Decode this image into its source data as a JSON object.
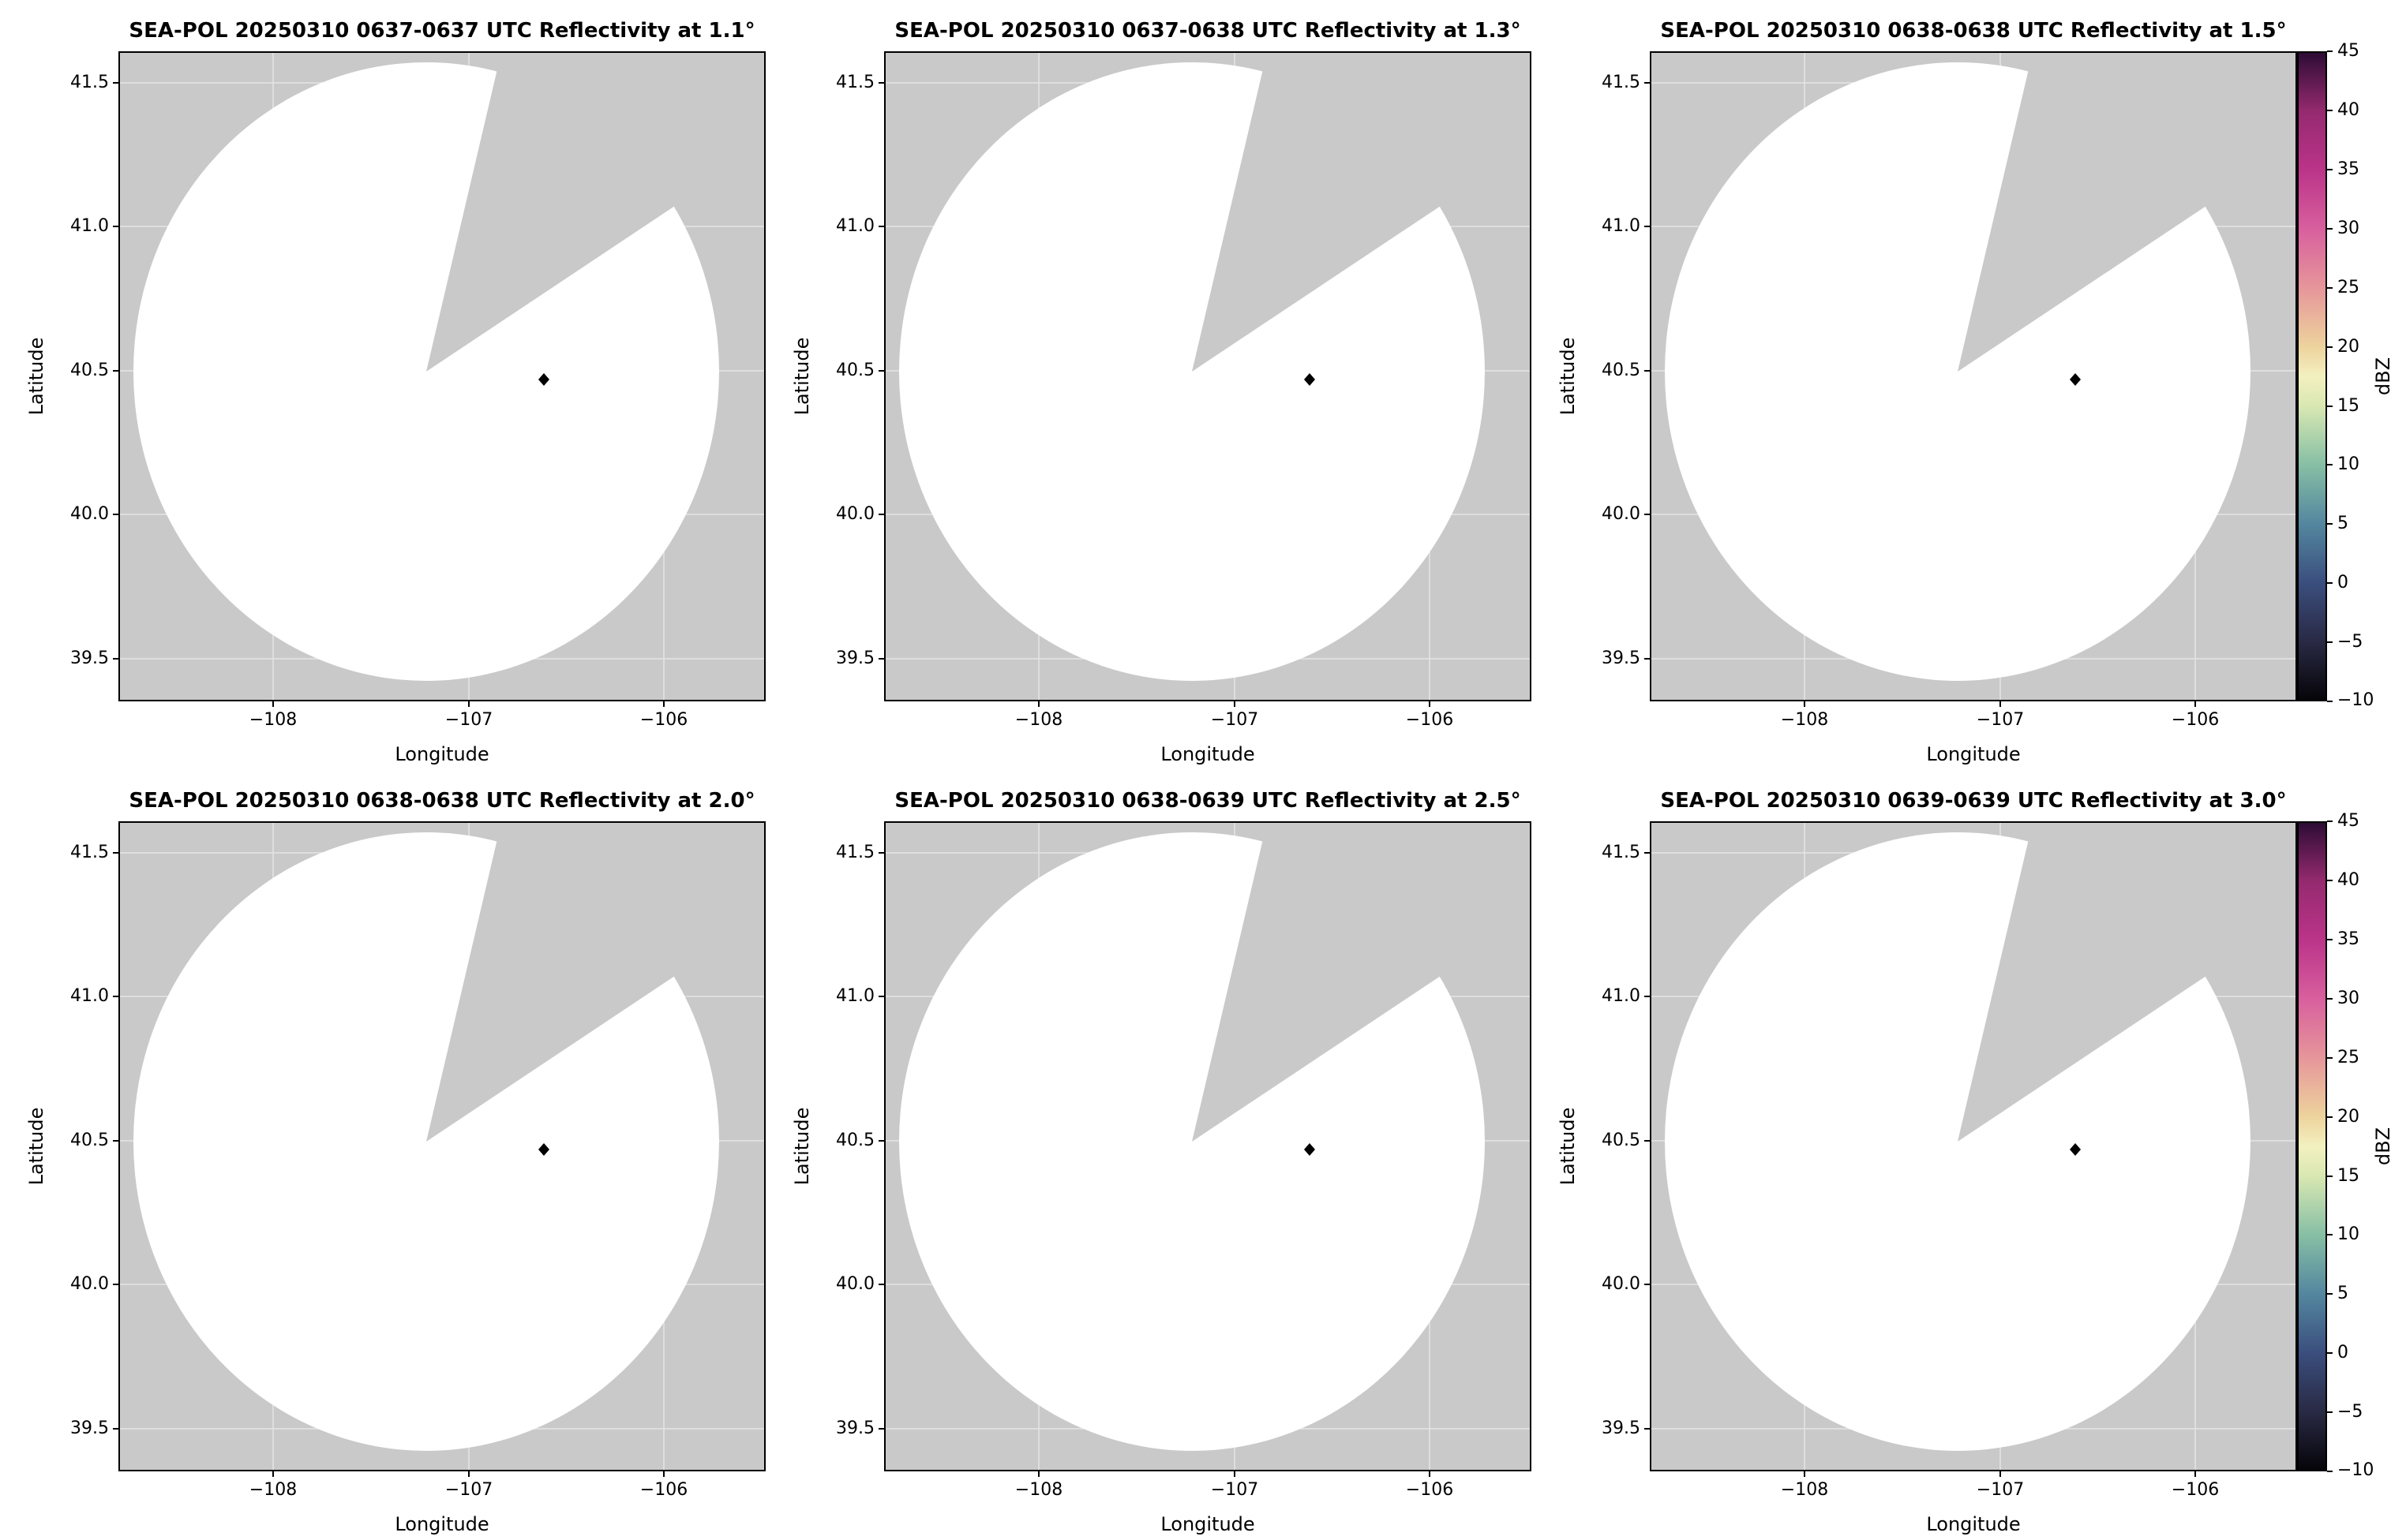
{
  "figure": {
    "type": "radar-reflectivity-multipanel",
    "rows": 2,
    "cols": 3,
    "background_color": "#ffffff",
    "masked_area_color": "#c9c9c9",
    "coverage_area_color": "#ffffff",
    "xtick_labels": [
      "−108",
      "−107",
      "−106"
    ],
    "ytick_labels": [
      "41.5",
      "41.0",
      "40.5",
      "40.0",
      "39.5"
    ],
    "colorbar": {
      "label": "dBZ",
      "tick_labels": [
        "45",
        "40",
        "35",
        "30",
        "25",
        "20",
        "15",
        "10",
        "5",
        "0",
        "−5",
        "−10"
      ],
      "vmin": -10,
      "vmax": 45,
      "colormap_name": "spectral radar colormap (dark blue → teal → pale yellow → pink → magenta → dark purple)",
      "gradient_stops_bottom_to_top": [
        "#060509",
        "#292a45",
        "#3b4f7e",
        "#54879f",
        "#87bfa5",
        "#d9e8b2",
        "#f3f0c0",
        "#edd39d",
        "#e6969a",
        "#d8609e",
        "#bb3489",
        "#952a6f",
        "#2d0c34"
      ],
      "gradient_stop_positions": [
        0,
        9.09,
        18.18,
        27.27,
        36.36,
        45.45,
        50,
        54.55,
        63.64,
        72.73,
        81.82,
        90.91,
        100
      ]
    }
  },
  "chart_data": [
    {
      "type": "heatmap",
      "title": "SEA-POL 20250310 0637-0637 UTC Reflectivity at 1.1°",
      "radar": "SEA-POL",
      "date": "20250310",
      "time_utc": "0637-0637",
      "elevation_deg": 1.1,
      "field": "Reflectivity",
      "units": "dBZ",
      "xlabel": "Longitude",
      "ylabel": "Latitude",
      "xlim": [
        -108.8,
        -105.5
      ],
      "ylim": [
        39.35,
        41.6
      ],
      "xticks": [
        -108,
        -107,
        -106
      ],
      "yticks": [
        39.5,
        40.0,
        40.5,
        41.0,
        41.5
      ],
      "color_range": [
        -10,
        45
      ],
      "coverage_circle": {
        "center_lon": -107.22,
        "center_lat": 40.48,
        "radius_deg_lat": 1.07
      },
      "missing_sector_deg_from_north": [
        9,
        54
      ],
      "site_marker": {
        "lon": -106.66,
        "lat": 40.45,
        "style": "small black diamond"
      },
      "echoes": "none visible; coverage area is blank (below -10 dBZ / no data)"
    },
    {
      "type": "heatmap",
      "title": "SEA-POL 20250310 0637-0638 UTC Reflectivity at 1.3°",
      "radar": "SEA-POL",
      "date": "20250310",
      "time_utc": "0637-0638",
      "elevation_deg": 1.3,
      "field": "Reflectivity",
      "units": "dBZ",
      "xlabel": "Longitude",
      "ylabel": "Latitude",
      "xlim": [
        -108.8,
        -105.5
      ],
      "ylim": [
        39.35,
        41.6
      ],
      "xticks": [
        -108,
        -107,
        -106
      ],
      "yticks": [
        39.5,
        40.0,
        40.5,
        41.0,
        41.5
      ],
      "color_range": [
        -10,
        45
      ],
      "coverage_circle": {
        "center_lon": -107.22,
        "center_lat": 40.48,
        "radius_deg_lat": 1.07
      },
      "missing_sector_deg_from_north": [
        9,
        54
      ],
      "site_marker": {
        "lon": -106.66,
        "lat": 40.45,
        "style": "small black diamond"
      },
      "echoes": "none visible; coverage area is blank (below -10 dBZ / no data)"
    },
    {
      "type": "heatmap",
      "title": "SEA-POL 20250310 0638-0638 UTC Reflectivity at 1.5°",
      "radar": "SEA-POL",
      "date": "20250310",
      "time_utc": "0638-0638",
      "elevation_deg": 1.5,
      "field": "Reflectivity",
      "units": "dBZ",
      "xlabel": "Longitude",
      "ylabel": "Latitude",
      "xlim": [
        -108.8,
        -105.5
      ],
      "ylim": [
        39.35,
        41.6
      ],
      "xticks": [
        -108,
        -107,
        -106
      ],
      "yticks": [
        39.5,
        40.0,
        40.5,
        41.0,
        41.5
      ],
      "color_range": [
        -10,
        45
      ],
      "coverage_circle": {
        "center_lon": -107.22,
        "center_lat": 40.48,
        "radius_deg_lat": 1.07
      },
      "missing_sector_deg_from_north": [
        9,
        54
      ],
      "site_marker": {
        "lon": -106.66,
        "lat": 40.45,
        "style": "small black diamond"
      },
      "echoes": "none visible; coverage area is blank (below -10 dBZ / no data)"
    },
    {
      "type": "heatmap",
      "title": "SEA-POL 20250310 0638-0638 UTC Reflectivity at 2.0°",
      "radar": "SEA-POL",
      "date": "20250310",
      "time_utc": "0638-0638",
      "elevation_deg": 2.0,
      "field": "Reflectivity",
      "units": "dBZ",
      "xlabel": "Longitude",
      "ylabel": "Latitude",
      "xlim": [
        -108.8,
        -105.5
      ],
      "ylim": [
        39.35,
        41.6
      ],
      "xticks": [
        -108,
        -107,
        -106
      ],
      "yticks": [
        39.5,
        40.0,
        40.5,
        41.0,
        41.5
      ],
      "color_range": [
        -10,
        45
      ],
      "coverage_circle": {
        "center_lon": -107.22,
        "center_lat": 40.48,
        "radius_deg_lat": 1.07
      },
      "missing_sector_deg_from_north": [
        9,
        54
      ],
      "site_marker": {
        "lon": -106.66,
        "lat": 40.45,
        "style": "small black diamond"
      },
      "echoes": "none visible; coverage area is blank (below -10 dBZ / no data)"
    },
    {
      "type": "heatmap",
      "title": "SEA-POL 20250310 0638-0639 UTC Reflectivity at 2.5°",
      "radar": "SEA-POL",
      "date": "20250310",
      "time_utc": "0638-0639",
      "elevation_deg": 2.5,
      "field": "Reflectivity",
      "units": "dBZ",
      "xlabel": "Longitude",
      "ylabel": "Latitude",
      "xlim": [
        -108.8,
        -105.5
      ],
      "ylim": [
        39.35,
        41.6
      ],
      "xticks": [
        -108,
        -107,
        -106
      ],
      "yticks": [
        39.5,
        40.0,
        40.5,
        41.0,
        41.5
      ],
      "color_range": [
        -10,
        45
      ],
      "coverage_circle": {
        "center_lon": -107.22,
        "center_lat": 40.48,
        "radius_deg_lat": 1.07
      },
      "missing_sector_deg_from_north": [
        9,
        54
      ],
      "site_marker": {
        "lon": -106.66,
        "lat": 40.45,
        "style": "small black diamond"
      },
      "echoes": "none visible; coverage area is blank (below -10 dBZ / no data)"
    },
    {
      "type": "heatmap",
      "title": "SEA-POL 20250310 0639-0639 UTC Reflectivity at 3.0°",
      "radar": "SEA-POL",
      "date": "20250310",
      "time_utc": "0639-0639",
      "elevation_deg": 3.0,
      "field": "Reflectivity",
      "units": "dBZ",
      "xlabel": "Longitude",
      "ylabel": "Latitude",
      "xlim": [
        -108.8,
        -105.5
      ],
      "ylim": [
        39.35,
        41.6
      ],
      "xticks": [
        -108,
        -107,
        -106
      ],
      "yticks": [
        39.5,
        40.0,
        40.5,
        41.0,
        41.5
      ],
      "color_range": [
        -10,
        45
      ],
      "coverage_circle": {
        "center_lon": -107.22,
        "center_lat": 40.48,
        "radius_deg_lat": 1.07
      },
      "missing_sector_deg_from_north": [
        9,
        54
      ],
      "site_marker": {
        "lon": -106.66,
        "lat": 40.45,
        "style": "small black diamond"
      },
      "echoes": "none visible; coverage area is blank (below -10 dBZ / no data)"
    }
  ]
}
